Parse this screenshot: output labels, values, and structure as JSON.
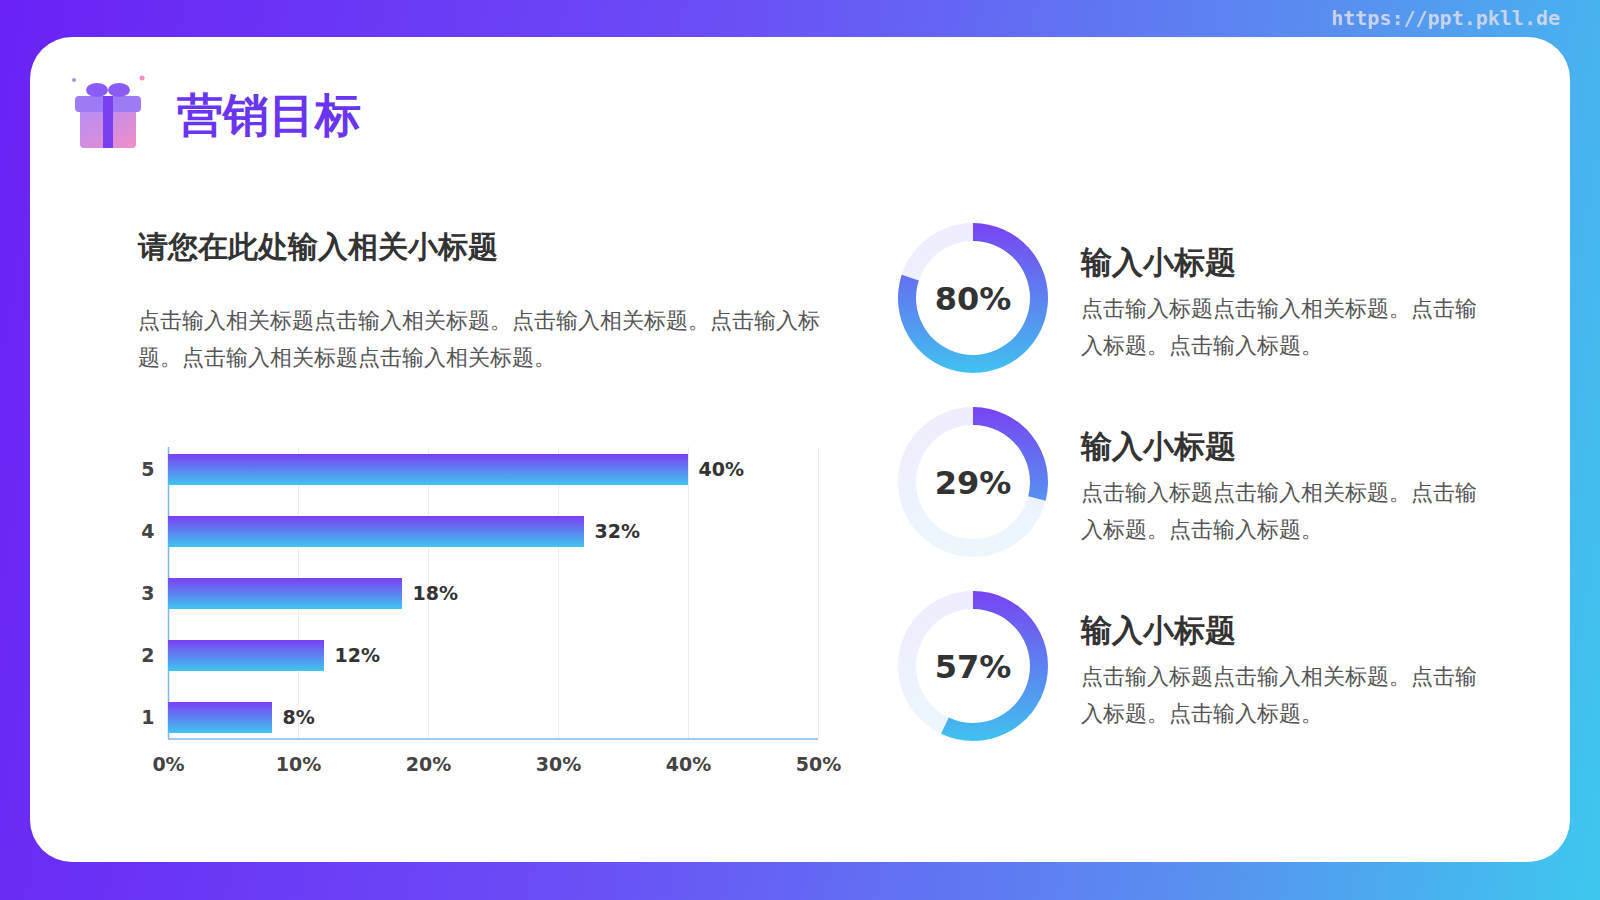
{
  "title": "营销目标",
  "annotations": [
    "https://ppt.pkll.de"
  ],
  "chart_data": [
    {
      "type": "bar",
      "orientation": "horizontal",
      "title": "请您在此处输入相关小标题",
      "subtitle": "点击输入相关标题点击输入相关标题。点击输入相关标题。点击输入标题。点击输入相关标题点击输入相关标题。",
      "categories": [
        "1",
        "2",
        "3",
        "4",
        "5"
      ],
      "values": [
        8,
        12,
        18,
        32,
        40
      ],
      "value_labels": [
        "8%",
        "12%",
        "18%",
        "32%",
        "40%"
      ],
      "data_labels": true,
      "xlim": [
        0,
        50
      ],
      "xticks": [
        {
          "value": 0,
          "label": "0%"
        },
        {
          "value": 10,
          "label": "10%"
        },
        {
          "value": 20,
          "label": "20%"
        },
        {
          "value": 30,
          "label": "30%"
        },
        {
          "value": 40,
          "label": "40%"
        },
        {
          "value": 50,
          "label": "50%"
        }
      ],
      "grid": true,
      "color": "#7b3ff2"
    },
    {
      "type": "donut",
      "title": "输入小标题",
      "subtitle": "点击输入标题点击输入相关标题。点击输入标题。点击输入标题。",
      "values": [
        80
      ],
      "value_labels": [
        "80%"
      ],
      "data_labels": true,
      "color": "#7b3ff2"
    },
    {
      "type": "donut",
      "title": "输入小标题",
      "subtitle": "点击输入标题点击输入相关标题。点击输入标题。点击输入标题。",
      "values": [
        29
      ],
      "value_labels": [
        "29%"
      ],
      "data_labels": true,
      "color": "#7b3ff2"
    },
    {
      "type": "donut",
      "title": "输入小标题",
      "subtitle": "点击输入标题点击输入相关标题。点击输入标题。点击输入标题。",
      "values": [
        57
      ],
      "value_labels": [
        "57%"
      ],
      "data_labels": true,
      "color": "#7b3ff2"
    }
  ]
}
